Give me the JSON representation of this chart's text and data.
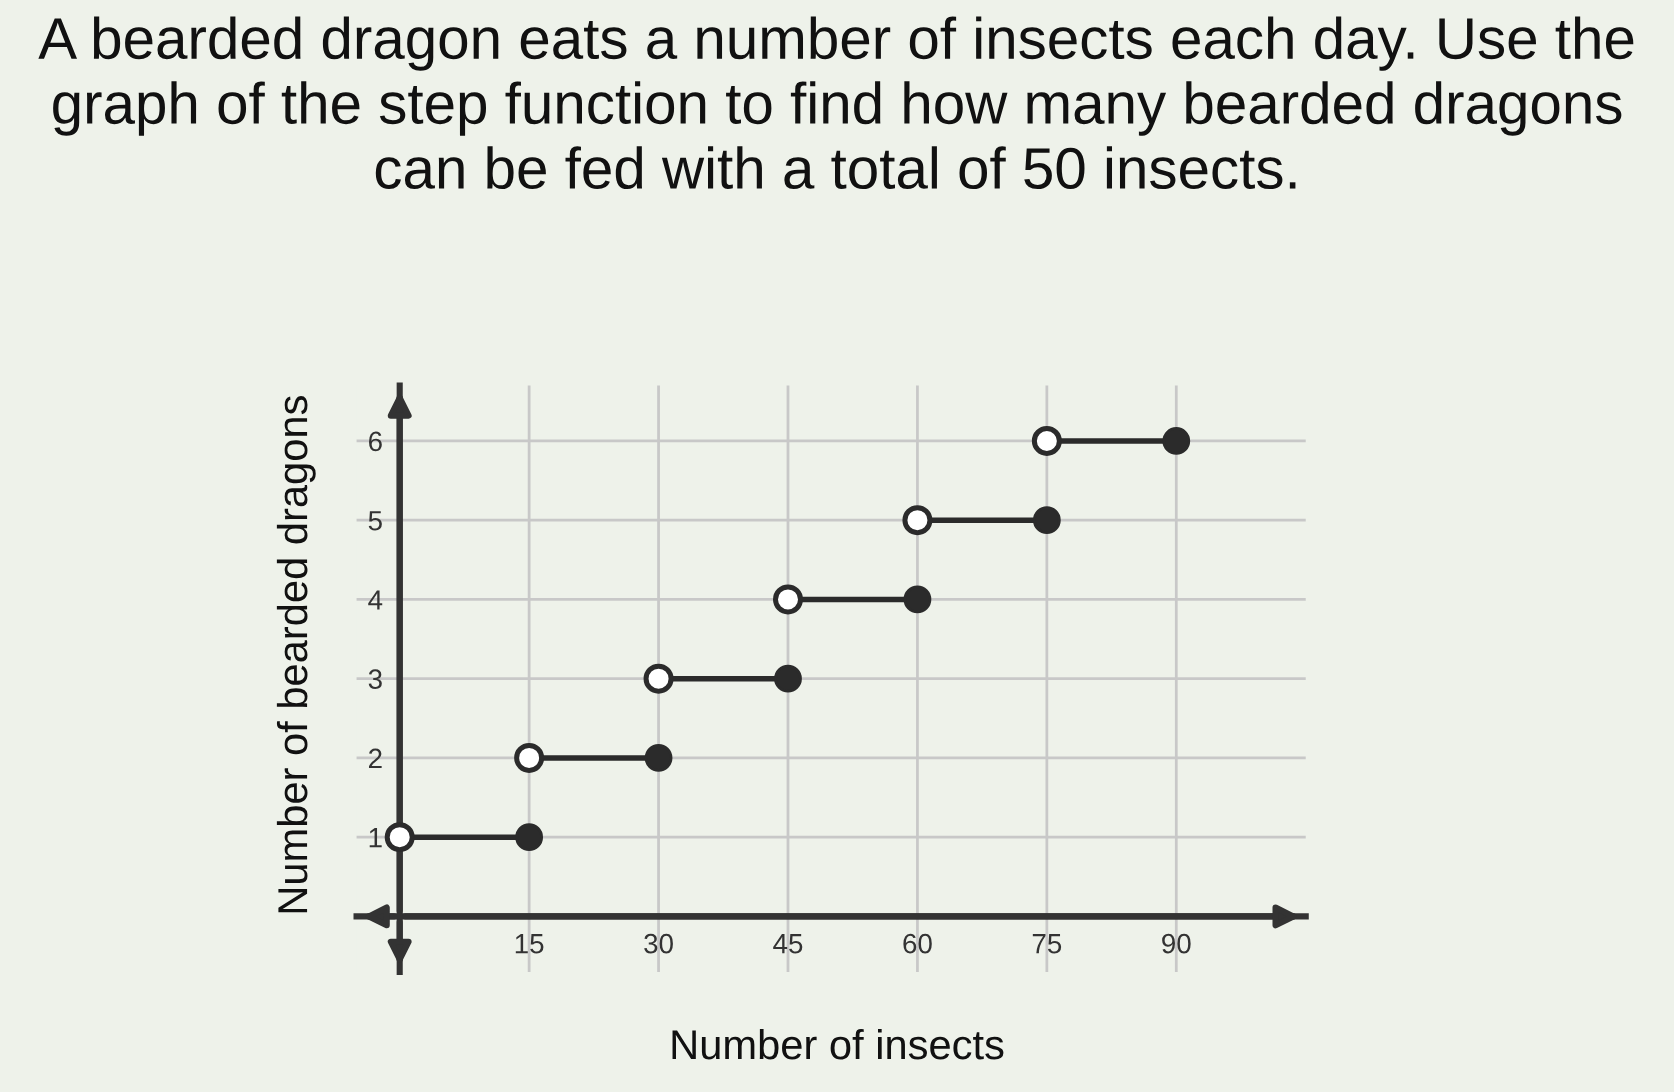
{
  "chart_data": {
    "type": "step",
    "title": "A bearded dragon eats a number of insects each day. Use the graph of the step function to find how many bearded dragons can be fed with a total of 50 insects.",
    "xlabel": "Number of insects",
    "ylabel": "Number of bearded dragons",
    "xlim": [
      -5,
      105
    ],
    "ylim": [
      -0.7,
      6.7
    ],
    "xticks": [
      15,
      30,
      45,
      60,
      75,
      90
    ],
    "yticks": [
      1,
      2,
      3,
      4,
      5,
      6
    ],
    "grid": true,
    "marker": "circle",
    "series": [
      {
        "x": [
          0,
          15
        ],
        "values": [
          1,
          1
        ],
        "color": "#2b2b2b"
      },
      {
        "x": [
          15,
          30
        ],
        "values": [
          2,
          2
        ],
        "color": "#2b2b2b"
      },
      {
        "x": [
          30,
          45
        ],
        "values": [
          3,
          3
        ],
        "color": "#2b2b2b"
      },
      {
        "x": [
          45,
          60
        ],
        "values": [
          4,
          4
        ],
        "color": "#2b2b2b"
      },
      {
        "x": [
          60,
          75
        ],
        "values": [
          5,
          5
        ],
        "color": "#2b2b2b"
      },
      {
        "x": [
          75,
          90
        ],
        "values": [
          6,
          6
        ],
        "color": "#2b2b2b"
      }
    ]
  }
}
